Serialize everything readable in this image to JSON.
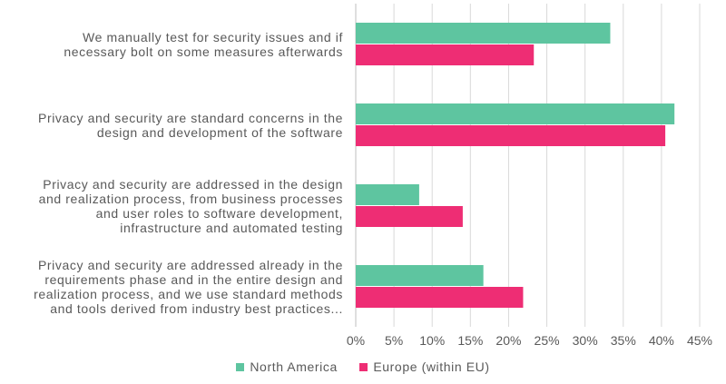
{
  "chart_data": {
    "type": "bar",
    "orientation": "horizontal",
    "title": "",
    "xlabel": "",
    "ylabel": "",
    "categories": [
      [
        "We manually test for security issues and if",
        "necessary bolt on some measures afterwards"
      ],
      [
        "Privacy and security are standard concerns in the",
        "design and development of the software"
      ],
      [
        "Privacy and security are addressed in the design",
        "and realization process, from business processes",
        "and user roles to software development,",
        "infrastructure and automated testing"
      ],
      [
        "Privacy and security are addressed already in the",
        "requirements phase and in the entire design and",
        "realization process, and we use standard methods",
        "and tools derived from industry best practices..."
      ]
    ],
    "series": [
      {
        "name": "North America",
        "color": "#5ec5a0",
        "values": [
          33.3,
          41.7,
          8.3,
          16.7
        ]
      },
      {
        "name": "Europe (within EU)",
        "color": "#ee2d74",
        "values": [
          23.3,
          40.5,
          14.0,
          21.9
        ]
      }
    ],
    "xlim": [
      0,
      45
    ],
    "ticks": [
      "0%",
      "5%",
      "10%",
      "15%",
      "20%",
      "25%",
      "30%",
      "35%",
      "40%",
      "45%"
    ],
    "grid": true,
    "legend_position": "bottom"
  }
}
